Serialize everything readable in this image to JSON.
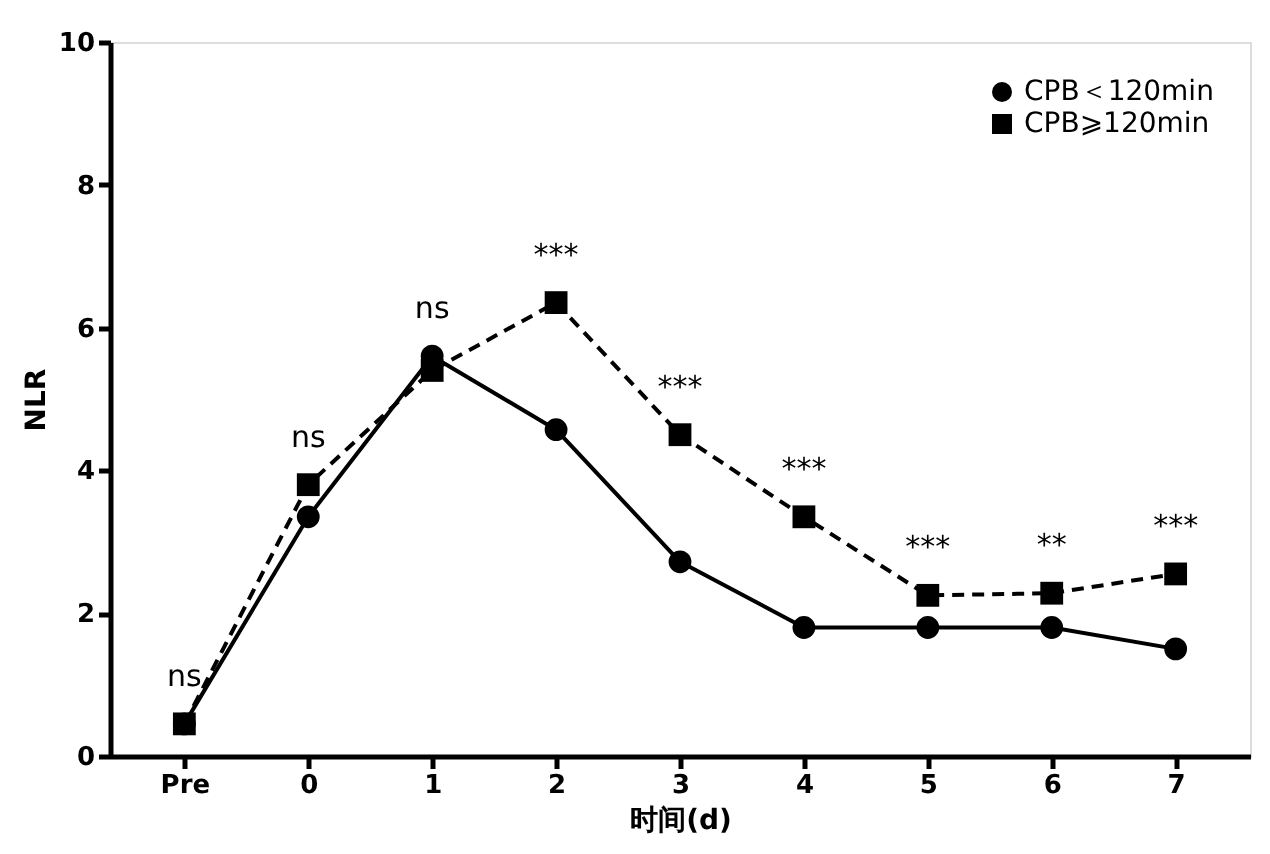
{
  "chart_data": {
    "type": "line",
    "xlabel": "时间(d)",
    "ylabel": "NLR",
    "categories": [
      "Pre",
      "0",
      "1",
      "2",
      "3",
      "4",
      "5",
      "6",
      "7"
    ],
    "series": [
      {
        "name": "CPB＜120min",
        "color": "#000000",
        "marker": "circle",
        "line_style": "solid",
        "values": [
          0.45,
          3.35,
          5.6,
          4.57,
          2.72,
          1.8,
          1.8,
          1.8,
          1.5
        ]
      },
      {
        "name": "CPB⩾120min",
        "color": "#000000",
        "marker": "square",
        "line_style": "dashed",
        "values": [
          0.45,
          3.8,
          5.4,
          6.35,
          4.5,
          3.35,
          2.25,
          2.28,
          2.55
        ]
      }
    ],
    "ylim": [
      0,
      10
    ],
    "yticks": [
      0,
      2,
      4,
      6,
      8,
      10
    ],
    "grid": false,
    "legend": "top right",
    "annotations": [
      {
        "text": "ns",
        "x": "Pre",
        "y": 0.45
      },
      {
        "text": "ns",
        "x": "0",
        "y": 3.8
      },
      {
        "text": "ns",
        "x": "1",
        "y": 5.6
      },
      {
        "text": "***",
        "x": "2",
        "y": 6.35
      },
      {
        "text": "***",
        "x": "3",
        "y": 4.5
      },
      {
        "text": "***",
        "x": "4",
        "y": 3.35
      },
      {
        "text": "***",
        "x": "5",
        "y": 2.25
      },
      {
        "text": "**",
        "x": "6",
        "y": 2.28
      },
      {
        "text": "***",
        "x": "7",
        "y": 2.55
      }
    ]
  }
}
